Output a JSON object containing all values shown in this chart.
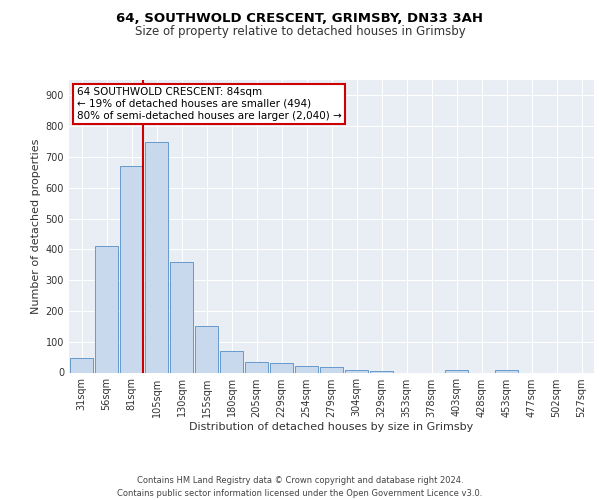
{
  "title1": "64, SOUTHWOLD CRESCENT, GRIMSBY, DN33 3AH",
  "title2": "Size of property relative to detached houses in Grimsby",
  "xlabel": "Distribution of detached houses by size in Grimsby",
  "ylabel": "Number of detached properties",
  "footer": "Contains HM Land Registry data © Crown copyright and database right 2024.\nContains public sector information licensed under the Open Government Licence v3.0.",
  "bin_labels": [
    "31sqm",
    "56sqm",
    "81sqm",
    "105sqm",
    "130sqm",
    "155sqm",
    "180sqm",
    "205sqm",
    "229sqm",
    "254sqm",
    "279sqm",
    "304sqm",
    "329sqm",
    "353sqm",
    "378sqm",
    "403sqm",
    "428sqm",
    "453sqm",
    "477sqm",
    "502sqm",
    "527sqm"
  ],
  "bar_heights": [
    48,
    410,
    670,
    750,
    358,
    150,
    70,
    35,
    30,
    22,
    18,
    8,
    5,
    0,
    0,
    8,
    0,
    8,
    0,
    0,
    0
  ],
  "bar_color": "#c9d9ed",
  "bar_edge_color": "#6699cc",
  "bg_color": "#e8eef4",
  "grid_color": "#ffffff",
  "red_line_bin_index": 2,
  "annotation_text": "64 SOUTHWOLD CRESCENT: 84sqm\n← 19% of detached houses are smaller (494)\n80% of semi-detached houses are larger (2,040) →",
  "annotation_box_color": "#ffffff",
  "annotation_border_color": "#cc0000",
  "ylim": [
    0,
    950
  ],
  "yticks": [
    0,
    100,
    200,
    300,
    400,
    500,
    600,
    700,
    800,
    900
  ],
  "title1_fontsize": 9.5,
  "title2_fontsize": 8.5,
  "ylabel_fontsize": 8,
  "xlabel_fontsize": 8,
  "tick_fontsize": 7,
  "footer_fontsize": 6,
  "annot_fontsize": 7.5
}
